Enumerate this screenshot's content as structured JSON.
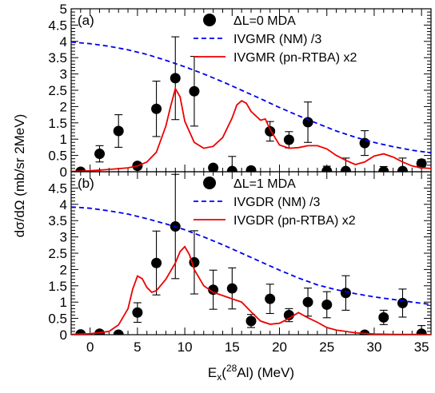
{
  "chart_data": [
    {
      "panel": "(a)",
      "type": "scatter",
      "ylim": [
        0,
        5
      ],
      "yticks": [
        "0",
        "0.5",
        "1",
        "1.5",
        "2",
        "2.5",
        "3",
        "3.5",
        "4",
        "4.5",
        "5"
      ],
      "legend_position": "top-right",
      "series": [
        {
          "name": "ΔL=0 MDA",
          "kind": "points",
          "color": "#000000",
          "x": [
            -1,
            1,
            3,
            5,
            7,
            9,
            11,
            13,
            15,
            17,
            19,
            21,
            23,
            25,
            27,
            29,
            31,
            33,
            35
          ],
          "y": [
            0.0,
            0.55,
            1.25,
            0.18,
            1.93,
            2.87,
            2.47,
            0.12,
            0.02,
            0.04,
            1.24,
            0.98,
            1.52,
            0.02,
            0.02,
            0.88,
            0.01,
            0.02,
            0.25
          ],
          "err": [
            0.0,
            0.25,
            0.5,
            0.1,
            0.85,
            1.27,
            1.07,
            0.08,
            0.45,
            0.1,
            0.3,
            0.25,
            0.62,
            0.15,
            0.4,
            0.38,
            0.15,
            0.4,
            0.12
          ]
        },
        {
          "name": "IVGMR (NM) /3",
          "kind": "dashed-line",
          "color": "#0000ee",
          "x": [
            -2,
            0,
            2,
            4,
            6,
            8,
            10,
            12,
            14,
            16,
            18,
            20,
            22,
            24,
            26,
            28,
            30,
            32,
            34,
            36
          ],
          "y": [
            3.98,
            3.93,
            3.85,
            3.74,
            3.6,
            3.42,
            3.22,
            3.0,
            2.76,
            2.5,
            2.24,
            1.97,
            1.72,
            1.48,
            1.25,
            1.06,
            0.9,
            0.77,
            0.66,
            0.58
          ]
        },
        {
          "name": "IVGMR (pn-RTBA) x2",
          "kind": "line",
          "color": "#ee0000",
          "x": [
            -2,
            0,
            2,
            4,
            5,
            6,
            7,
            8,
            8.5,
            9,
            9.5,
            10,
            11,
            12,
            13,
            14,
            15,
            15.5,
            16,
            16.5,
            17,
            18,
            18.5,
            19,
            20,
            21,
            22,
            23,
            24,
            25,
            26,
            27,
            28,
            29,
            30,
            31,
            32,
            33,
            34,
            35,
            36
          ],
          "y": [
            0.01,
            0.03,
            0.07,
            0.12,
            0.18,
            0.3,
            0.6,
            1.4,
            2.0,
            2.55,
            2.3,
            1.55,
            0.9,
            0.72,
            0.78,
            1.05,
            1.65,
            2.05,
            2.18,
            2.1,
            1.85,
            1.58,
            1.62,
            1.3,
            0.82,
            0.72,
            0.74,
            0.8,
            0.8,
            0.7,
            0.5,
            0.35,
            0.22,
            0.3,
            0.48,
            0.55,
            0.45,
            0.3,
            0.18,
            0.12,
            0.1
          ]
        }
      ]
    },
    {
      "panel": "(b)",
      "type": "scatter",
      "ylim": [
        0,
        5
      ],
      "yticks": [
        "0",
        "0.5",
        "1",
        "1.5",
        "2",
        "2.5",
        "3",
        "3.5",
        "4",
        "4.5"
      ],
      "legend_position": "top-right",
      "series": [
        {
          "name": "ΔL=1 MDA",
          "kind": "points",
          "color": "#000000",
          "x": [
            -1,
            1,
            3,
            5,
            7,
            9,
            11,
            13,
            15,
            17,
            19,
            21,
            23,
            25,
            27,
            29,
            31,
            33,
            35
          ],
          "y": [
            0.01,
            0.03,
            0.0,
            0.68,
            2.2,
            3.32,
            2.22,
            1.38,
            1.42,
            0.42,
            1.1,
            0.6,
            1.0,
            0.92,
            1.28,
            0.0,
            0.53,
            0.97,
            0.03
          ],
          "err": [
            0.05,
            0.05,
            0.05,
            0.3,
            0.98,
            1.6,
            0.97,
            0.6,
            0.63,
            0.2,
            0.45,
            0.2,
            0.43,
            0.4,
            0.53,
            0.1,
            0.22,
            0.43,
            0.25
          ]
        },
        {
          "name": "IVGDR (NM) /3",
          "kind": "dashed-line",
          "color": "#0000ee",
          "x": [
            -2,
            0,
            2,
            4,
            6,
            8,
            10,
            12,
            14,
            16,
            18,
            20,
            22,
            24,
            26,
            28,
            30,
            32,
            34,
            36
          ],
          "y": [
            3.92,
            3.88,
            3.8,
            3.7,
            3.56,
            3.4,
            3.22,
            3.0,
            2.76,
            2.5,
            2.24,
            1.98,
            1.74,
            1.53,
            1.38,
            1.26,
            1.16,
            1.08,
            1.0,
            0.93
          ]
        },
        {
          "name": "IVGDR (pn-RTBA) x2",
          "kind": "line",
          "color": "#ee0000",
          "x": [
            -2,
            0,
            2,
            3,
            4,
            4.5,
            5,
            5.5,
            6,
            6.5,
            7,
            8,
            9,
            9.5,
            10,
            10.5,
            11,
            12,
            13,
            14,
            15,
            16,
            17,
            18,
            19,
            20,
            21,
            22,
            23,
            24,
            25,
            26,
            27,
            28,
            29,
            30,
            32,
            34,
            36
          ],
          "y": [
            0.01,
            0.03,
            0.1,
            0.3,
            0.8,
            1.4,
            1.8,
            1.72,
            1.45,
            1.3,
            1.35,
            1.7,
            2.2,
            2.55,
            2.7,
            2.45,
            2.0,
            1.5,
            1.3,
            1.2,
            1.1,
            1.0,
            0.7,
            0.42,
            0.32,
            0.35,
            0.5,
            0.68,
            0.52,
            0.38,
            0.22,
            0.14,
            0.1,
            0.06,
            0.04,
            0.02,
            0.01,
            0.01,
            0.0
          ]
        }
      ]
    }
  ],
  "axes": {
    "x_ticks": [
      "0",
      "5",
      "10",
      "15",
      "20",
      "25",
      "30",
      "35"
    ],
    "xlim": [
      -2,
      36
    ],
    "xlabel_parts": {
      "main": "E",
      "sub": "x",
      "paren_open": "(",
      "sup": "28",
      "rest": "Al) (MeV)"
    },
    "ylabel": "dσ/dΩ (mb/sr 2MeV)"
  }
}
